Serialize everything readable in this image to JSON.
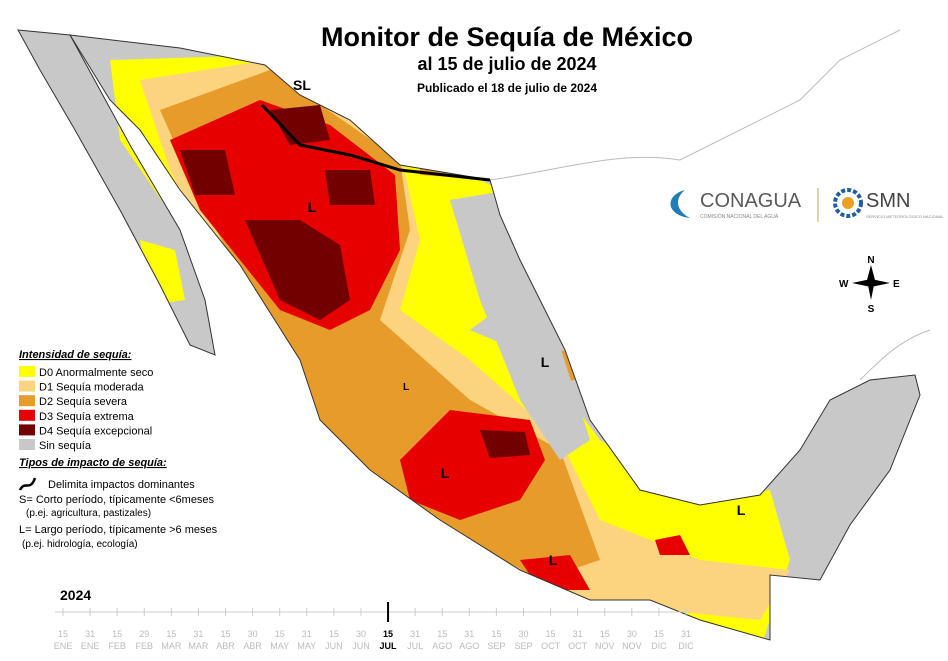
{
  "header": {
    "title": "Monitor de Sequía de México",
    "subtitle": "al 15 de julio de 2024",
    "published": "Publicado el 18 de julio de 2024"
  },
  "legend": {
    "title": "Intensidad de sequía:",
    "items": [
      {
        "label": "D0 Anormalmente seco",
        "color": "#ffff00"
      },
      {
        "label": "D1 Sequía moderada",
        "color": "#fcd37f"
      },
      {
        "label": "D2 Sequía severa",
        "color": "#e69b2a"
      },
      {
        "label": "D3 Sequía extrema",
        "color": "#e60000"
      },
      {
        "label": "D4 Sequía excepcional",
        "color": "#730000"
      },
      {
        "label": "Sin sequía",
        "color": "#c8c8c8"
      }
    ]
  },
  "impacts": {
    "title": "Tipos de impacto de sequía:",
    "line": "Delimita impactos dominantes",
    "short": "S= Corto período, típicamente <6meses",
    "short_example": "(p.ej. agricultura, pastizales)",
    "long": "L= Largo período, típicamente >6 meses",
    "long_example": "(p.ej. hidrología, ecología)"
  },
  "map_labels": [
    "SL",
    "L",
    "L",
    "L",
    "L",
    "L",
    "L"
  ],
  "compass": {
    "n": "N",
    "s": "S",
    "e": "E",
    "w": "W"
  },
  "logos": {
    "conagua": "CONAGUA",
    "conagua_sub": "COMISIÓN NACIONAL DEL AGUA",
    "smn": "SMN",
    "smn_sub": "SERVICIO METEOROLÓGICO NACIONAL"
  },
  "timeline": {
    "year": "2024",
    "ticks": [
      {
        "day": "15",
        "month": "ENE"
      },
      {
        "day": "31",
        "month": "ENE"
      },
      {
        "day": "15",
        "month": "FEB"
      },
      {
        "day": "29",
        "month": "FEB"
      },
      {
        "day": "15",
        "month": "MAR"
      },
      {
        "day": "31",
        "month": "MAR"
      },
      {
        "day": "15",
        "month": "ABR"
      },
      {
        "day": "30",
        "month": "ABR"
      },
      {
        "day": "15",
        "month": "MAY"
      },
      {
        "day": "31",
        "month": "MAY"
      },
      {
        "day": "15",
        "month": "JUN"
      },
      {
        "day": "30",
        "month": "JUN"
      },
      {
        "day": "15",
        "month": "JUL",
        "current": true
      },
      {
        "day": "31",
        "month": "JUL"
      },
      {
        "day": "15",
        "month": "AGO"
      },
      {
        "day": "31",
        "month": "AGO"
      },
      {
        "day": "15",
        "month": "SEP"
      },
      {
        "day": "30",
        "month": "SEP"
      },
      {
        "day": "15",
        "month": "OCT"
      },
      {
        "day": "31",
        "month": "OCT"
      },
      {
        "day": "15",
        "month": "NOV"
      },
      {
        "day": "30",
        "month": "NOV"
      },
      {
        "day": "15",
        "month": "DIC"
      },
      {
        "day": "31",
        "month": "DIC"
      }
    ]
  }
}
